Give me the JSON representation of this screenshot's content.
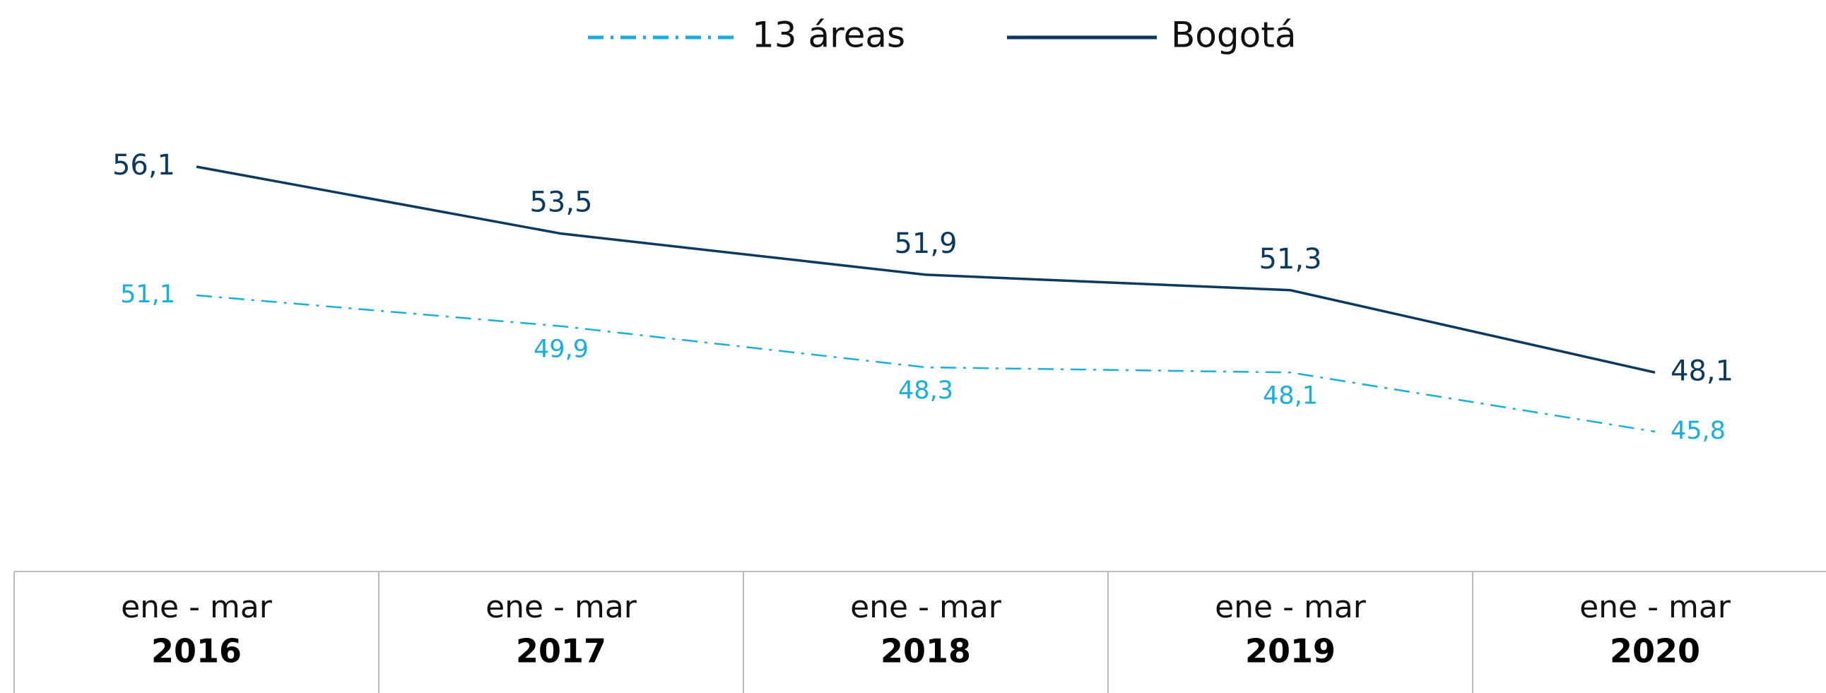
{
  "chart_data": {
    "type": "line",
    "categories": [
      {
        "period": "ene - mar",
        "year": "2016"
      },
      {
        "period": "ene - mar",
        "year": "2017"
      },
      {
        "period": "ene - mar",
        "year": "2018"
      },
      {
        "period": "ene - mar",
        "year": "2019"
      },
      {
        "period": "ene - mar",
        "year": "2020"
      }
    ],
    "series": [
      {
        "name": "13 áreas",
        "color": "#1aaedb",
        "dash": "dash-dot",
        "values": [
          51.1,
          49.9,
          48.3,
          48.1,
          45.8
        ],
        "value_labels": [
          "51,1",
          "49,9",
          "48,3",
          "48,1",
          "45,8"
        ]
      },
      {
        "name": "Bogotá",
        "color": "#0c3a5f",
        "dash": "solid",
        "values": [
          56.1,
          53.5,
          51.9,
          51.3,
          48.1
        ],
        "value_labels": [
          "56,1",
          "53,5",
          "51,9",
          "51,3",
          "48,1"
        ]
      }
    ],
    "legend": "top"
  }
}
